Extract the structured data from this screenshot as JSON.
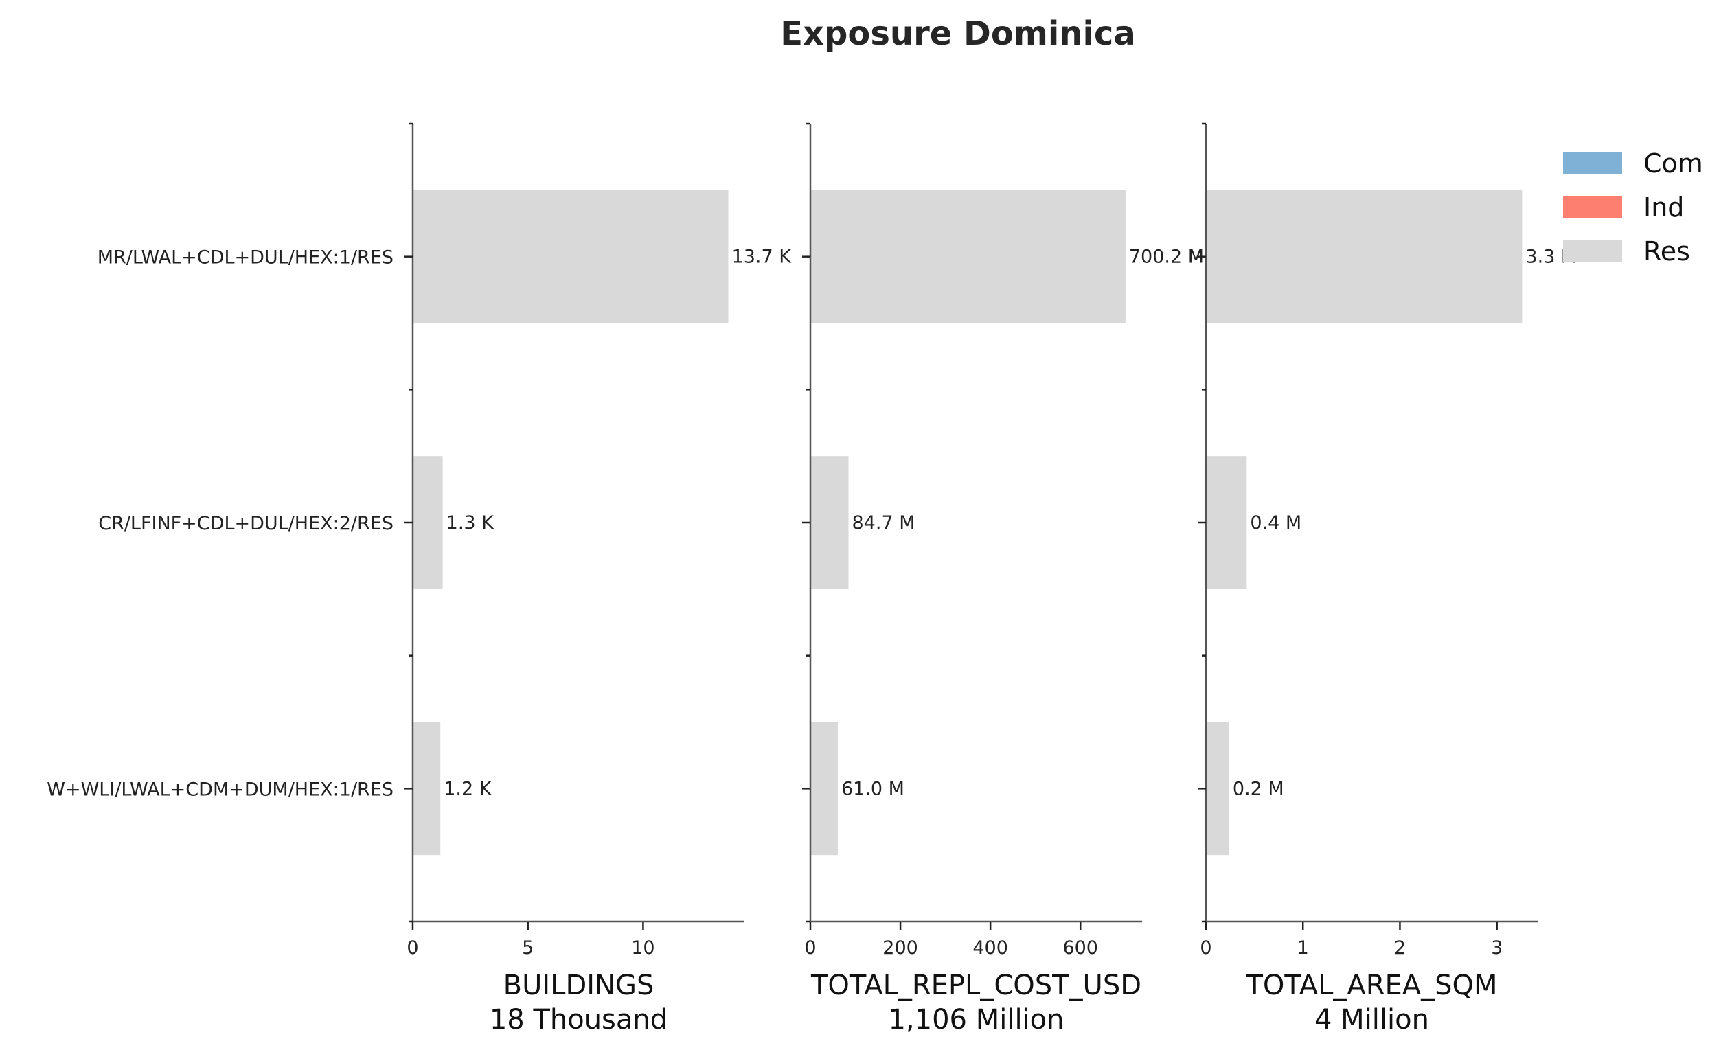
{
  "chart_data": {
    "title": "Exposure Dominica",
    "type": "bar",
    "orientation": "horizontal",
    "stacked": true,
    "categories": [
      "MR/LWAL+CDL+DUL/HEX:1/RES",
      "CR/LFINF+CDL+DUL/HEX:2/RES",
      "W+WLI/LWAL+CDM+DUM/HEX:1/RES"
    ],
    "legend": {
      "position": "upper-right",
      "entries": [
        {
          "name": "Com",
          "color": "#7fb0d6"
        },
        {
          "name": "Ind",
          "color": "#fd7f6f"
        },
        {
          "name": "Res",
          "color": "#d9d9d9"
        }
      ]
    },
    "panels": [
      {
        "xlabel": "BUILDINGS",
        "total_label": "18 Thousand",
        "xlim": [
          0,
          14.4
        ],
        "ticks": [
          0,
          5,
          10
        ],
        "tick_labels": [
          "0",
          "5",
          "10"
        ],
        "series": [
          {
            "name": "Res",
            "values": [
              13.7,
              1.3,
              1.2
            ]
          }
        ],
        "value_labels": [
          "13.7 K",
          "1.3 K",
          "1.2 K"
        ]
      },
      {
        "xlabel": "TOTAL_REPL_COST_USD",
        "total_label": "1,106 Million",
        "xlim": [
          0,
          737
        ],
        "ticks": [
          0,
          200,
          400,
          600
        ],
        "tick_labels": [
          "0",
          "200",
          "400",
          "600"
        ],
        "series": [
          {
            "name": "Res",
            "values": [
              700.2,
              84.7,
              61.0
            ]
          }
        ],
        "value_labels": [
          "700.2 M",
          "84.7 M",
          "61.0 M"
        ]
      },
      {
        "xlabel": "TOTAL_AREA_SQM",
        "total_label": "4 Million",
        "xlim": [
          0,
          3.42
        ],
        "ticks": [
          0,
          1,
          2,
          3
        ],
        "tick_labels": [
          "0",
          "1",
          "2",
          "3"
        ],
        "series": [
          {
            "name": "Res",
            "values": [
              3.26,
              0.42,
              0.24
            ]
          }
        ],
        "value_labels": [
          "3.3 M",
          "0.4 M",
          "0.2 M"
        ]
      }
    ]
  }
}
